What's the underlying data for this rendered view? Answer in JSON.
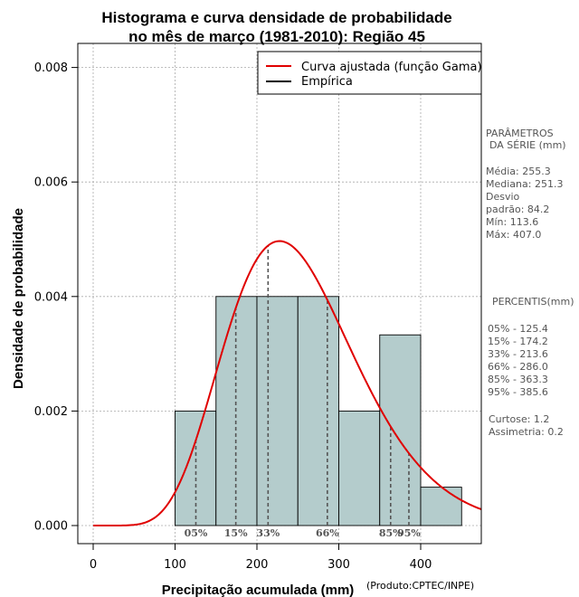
{
  "chart_data": {
    "type": "histogram",
    "title_line1": "Histograma e curva densidade de probabilidade",
    "title_line2": "no mês de março (1981-2010): Região 45",
    "xlabel": "Precipitação acumulada (mm)",
    "ylabel": "Densidade de probabilidade",
    "credit": "(Produto:CPTEC/INPE)",
    "xlim": [
      -15,
      480
    ],
    "ylim": [
      -0.0003,
      0.0083
    ],
    "x_ticks": [
      0,
      100,
      200,
      300,
      400
    ],
    "x_tick_labels": [
      "0",
      "100",
      "200",
      "300",
      "400"
    ],
    "y_ticks": [
      0,
      0.002,
      0.004,
      0.006,
      0.008
    ],
    "y_tick_labels": [
      "0.000",
      "0.002",
      "0.004",
      "0.006",
      "0.008"
    ],
    "grid": true,
    "bins": [
      {
        "start": 100,
        "end": 150,
        "density": 0.002
      },
      {
        "start": 150,
        "end": 200,
        "density": 0.004
      },
      {
        "start": 200,
        "end": 250,
        "density": 0.004
      },
      {
        "start": 250,
        "end": 300,
        "density": 0.004
      },
      {
        "start": 300,
        "end": 350,
        "density": 0.002
      },
      {
        "start": 350,
        "end": 400,
        "density": 0.00333
      },
      {
        "start": 400,
        "end": 450,
        "density": 0.00067
      }
    ],
    "fitted_curve": {
      "name": "Curva ajustada (função Gama)",
      "color": "#e00000",
      "mean": 255.3,
      "sd": 84.2
    },
    "legend": [
      {
        "label": "Curva ajustada (função Gama)",
        "color": "#e00000"
      },
      {
        "label": "Empírica",
        "color": "#000000"
      }
    ],
    "percentile_markers": [
      {
        "label": "05%",
        "value": 125.4
      },
      {
        "label": "15%",
        "value": 174.2
      },
      {
        "label": "33%",
        "value": 213.6
      },
      {
        "label": "66%",
        "value": 286.0
      },
      {
        "label": "85%",
        "value": 363.3
      },
      {
        "label": "95%",
        "value": 385.6
      }
    ],
    "colors": {
      "bar_fill": "#b4cccc",
      "bar_stroke": "#000000",
      "grid": "#aaaaaa",
      "marker": "#555555"
    }
  },
  "side_panel": {
    "params_title_1": "PARÂMETROS",
    "params_title_2": "DA SÉRIE (mm)",
    "stats": [
      "Média:  255.3",
      "Mediana:  251.3",
      "Desvio",
      "padrão:  84.2",
      "Mín:  113.6",
      "Máx:  407.0"
    ],
    "percentis_title": "PERCENTIS(mm)",
    "percentis": [
      "05% -  125.4",
      "15% -  174.2",
      "33% -  213.6",
      "66% -  286.0",
      "85% -  363.3",
      "95% -  385.6"
    ],
    "shape": [
      "Curtose:  1.2",
      "Assimetria:  0.2"
    ]
  }
}
